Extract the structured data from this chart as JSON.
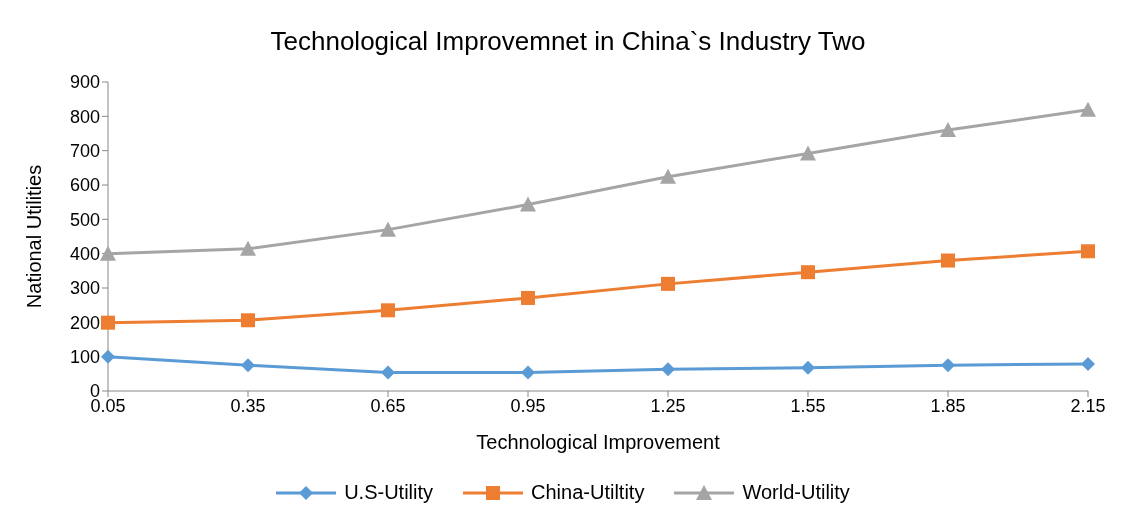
{
  "chart_data": {
    "type": "line",
    "title": "Technological Improvemnet in China`s Industry Two",
    "xlabel": "Technological Improvement",
    "ylabel": "National Utilities",
    "categories": [
      "0.05",
      "0.35",
      "0.65",
      "0.95",
      "1.25",
      "1.55",
      "1.85",
      "2.15"
    ],
    "series": [
      {
        "name": "U.S-Utility",
        "color": "#5b9bd5",
        "marker": "diamond",
        "values": [
          100,
          75,
          54,
          54,
          63,
          68,
          75,
          79
        ]
      },
      {
        "name": "China-Utiltity",
        "color": "#ed7d31",
        "marker": "square",
        "values": [
          199,
          206,
          235,
          271,
          312,
          346,
          380,
          407
        ]
      },
      {
        "name": "World-Utility",
        "color": "#a5a5a5",
        "marker": "triangle",
        "values": [
          400,
          414,
          470,
          543,
          624,
          692,
          760,
          819
        ]
      }
    ],
    "ylim": [
      0,
      900
    ],
    "yticks": [
      0,
      100,
      200,
      300,
      400,
      500,
      600,
      700,
      800,
      900
    ],
    "grid": false,
    "legend": "bottom"
  }
}
